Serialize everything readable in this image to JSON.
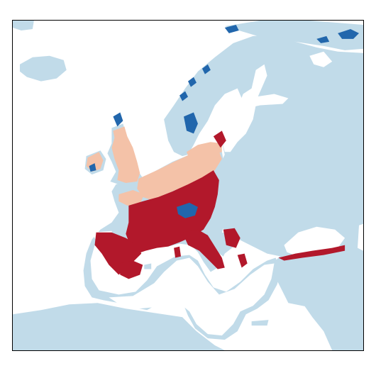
{
  "map": {
    "type": "choropleth-raster",
    "region": "Europe",
    "legend": null,
    "title": "",
    "colors": {
      "land_no_data": "#c1dbe9",
      "sea_background": "#ffffff",
      "category_dark_red": "#b2182b",
      "category_light_salmon": "#f4c2a8",
      "category_blue": "#2166ac",
      "frame": "#000000"
    },
    "categories": [
      {
        "id": "dark-red",
        "color_key": "category_dark_red"
      },
      {
        "id": "light-salmon",
        "color_key": "category_light_salmon"
      },
      {
        "id": "blue",
        "color_key": "category_blue"
      },
      {
        "id": "unclassified-land",
        "color_key": "land_no_data"
      }
    ]
  }
}
